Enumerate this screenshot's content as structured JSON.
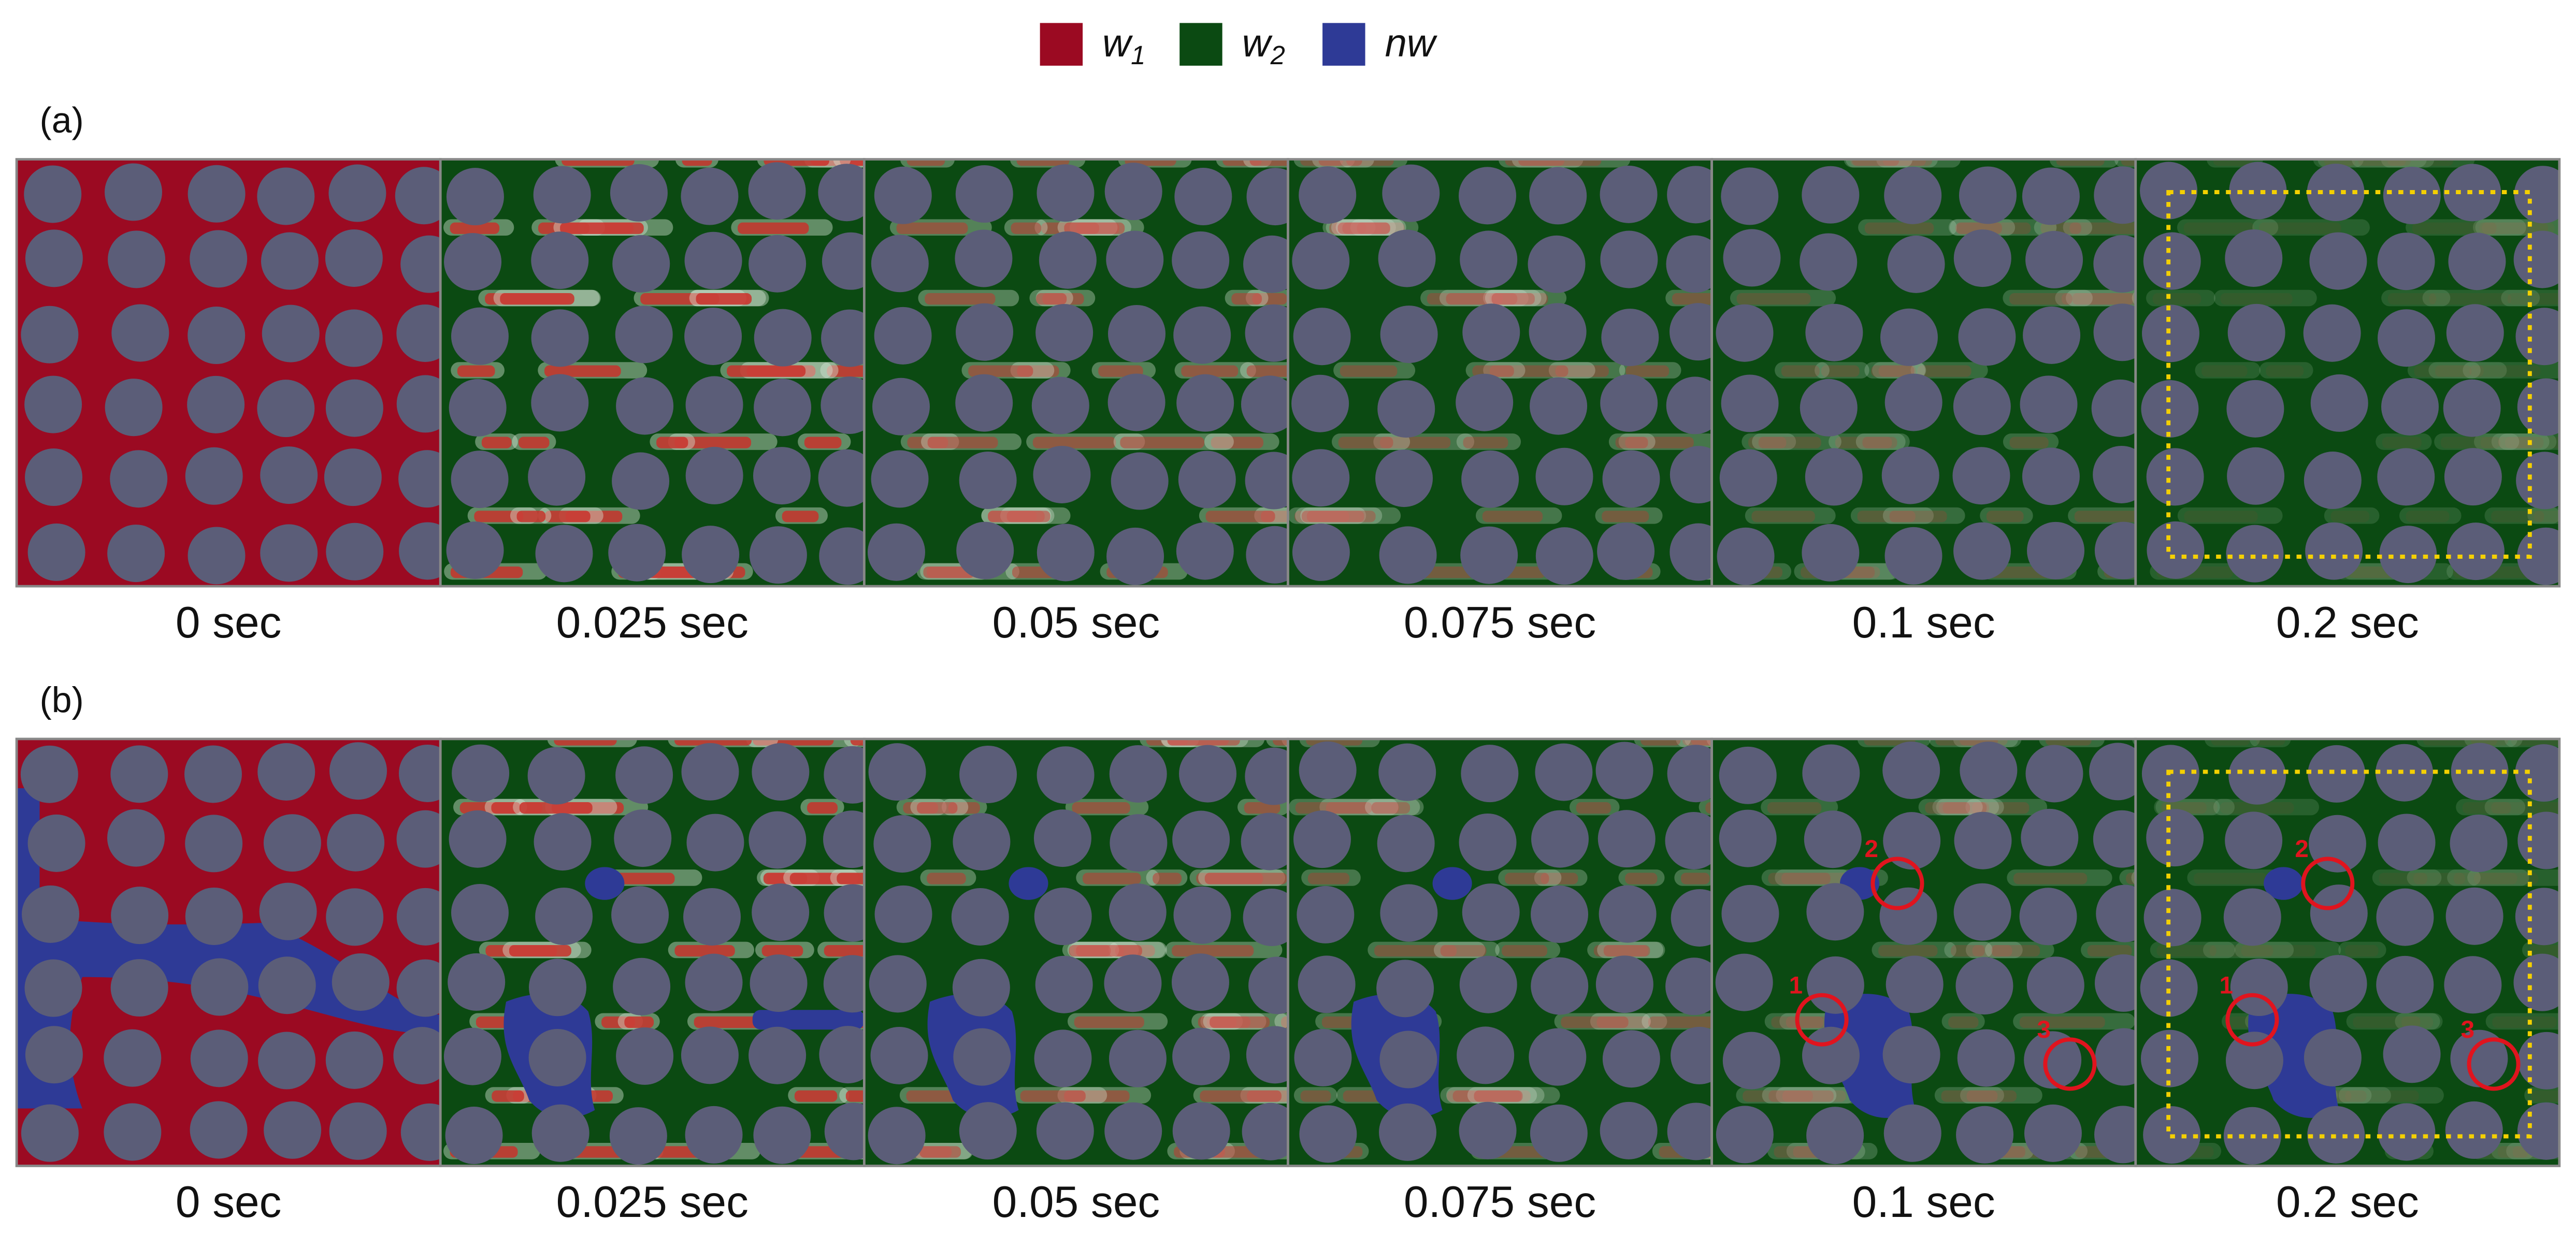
{
  "legend": [
    {
      "label": "w",
      "sub": "1",
      "color": "#9b0a22"
    },
    {
      "label": "w",
      "sub": "2",
      "color": "#0b4a12"
    },
    {
      "label": "nw",
      "color": "#2e3a96"
    }
  ],
  "rows": [
    {
      "label": "(a)",
      "times": [
        "0 sec",
        "0.025 sec",
        "0.05 sec",
        "0.075 sec",
        "0.1 sec",
        "0.2 sec"
      ]
    },
    {
      "label": "(b)",
      "times": [
        "0 sec",
        "0.025 sec",
        "0.05 sec",
        "0.075 sec",
        "0.1 sec",
        "0.2 sec"
      ],
      "markers": [
        "1",
        "2",
        "3"
      ]
    }
  ]
}
